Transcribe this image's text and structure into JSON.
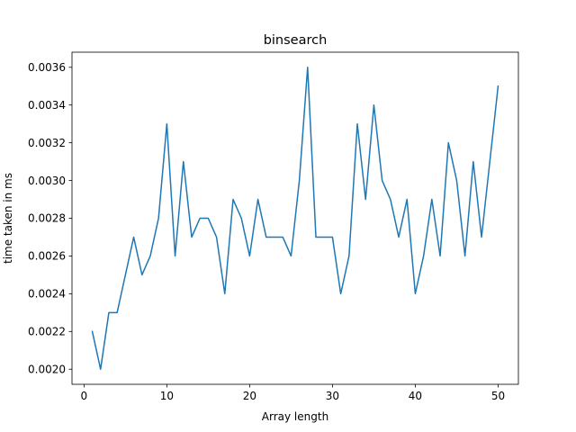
{
  "chart_data": {
    "type": "line",
    "title": "binsearch",
    "xlabel": "Array length",
    "ylabel": "time taken in ms",
    "xlim": [
      -1.45,
      52.45
    ],
    "ylim": [
      0.00192,
      0.00368
    ],
    "xticks": [
      0,
      10,
      20,
      30,
      40,
      50
    ],
    "yticks": [
      0.002,
      0.0022,
      0.0024,
      0.0026,
      0.0028,
      0.003,
      0.0032,
      0.0034,
      0.0036
    ],
    "xtick_labels": [
      "0",
      "10",
      "20",
      "30",
      "40",
      "50"
    ],
    "ytick_labels": [
      "0.0020",
      "0.0022",
      "0.0024",
      "0.0026",
      "0.0028",
      "0.0030",
      "0.0032",
      "0.0034",
      "0.0036"
    ],
    "grid": false,
    "line_color": "#1f77b4",
    "series": [
      {
        "x": [
          1,
          2,
          3,
          4,
          5,
          6,
          7,
          8,
          9,
          10,
          11,
          12,
          13,
          14,
          15,
          16,
          17,
          18,
          19,
          20,
          21,
          22,
          23,
          24,
          25,
          26,
          27,
          28,
          29,
          30,
          31,
          32,
          33,
          34,
          35,
          36,
          37,
          38,
          39,
          40,
          41,
          42,
          43,
          44,
          45,
          46,
          47,
          48,
          49,
          50
        ],
        "values": [
          0.0022,
          0.002,
          0.0023,
          0.0023,
          0.0025,
          0.0027,
          0.0025,
          0.0026,
          0.0028,
          0.0033,
          0.0026,
          0.0031,
          0.0027,
          0.0028,
          0.0028,
          0.0027,
          0.0024,
          0.0029,
          0.0028,
          0.0026,
          0.0029,
          0.0027,
          0.0027,
          0.0027,
          0.0026,
          0.003,
          0.0036,
          0.0027,
          0.0027,
          0.0027,
          0.0024,
          0.0026,
          0.0033,
          0.0029,
          0.0034,
          0.003,
          0.0029,
          0.0027,
          0.0029,
          0.0024,
          0.0026,
          0.0029,
          0.0026,
          0.0032,
          0.003,
          0.0026,
          0.0031,
          0.0027,
          0.0031,
          0.0035
        ]
      }
    ]
  }
}
